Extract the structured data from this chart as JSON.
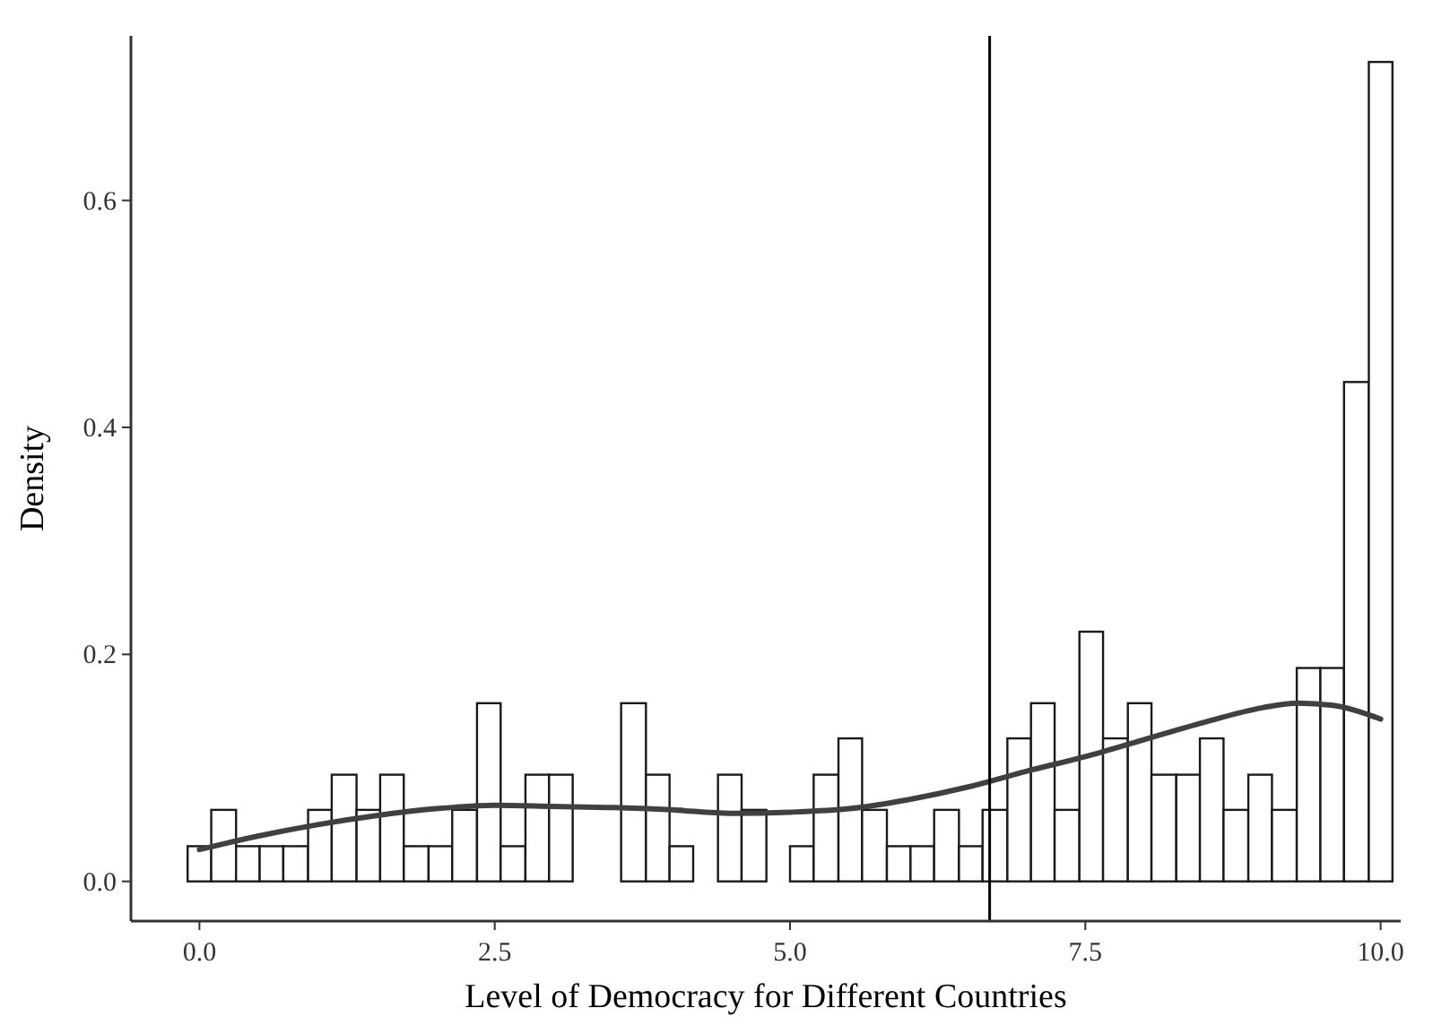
{
  "chart_data": {
    "type": "histogram",
    "xlabel": "Level of Democracy for Different Countries",
    "ylabel": "Density",
    "bins": [
      -0.1,
      0.1,
      0.31,
      0.51,
      0.71,
      0.92,
      1.12,
      1.33,
      1.53,
      1.73,
      1.94,
      2.14,
      2.35,
      2.55,
      2.76,
      2.96,
      3.16,
      3.57,
      3.78,
      3.98,
      4.18,
      4.39,
      4.59,
      4.8,
      5,
      5.2,
      5.41,
      5.61,
      5.82,
      6.02,
      6.22,
      6.43,
      6.63,
      6.84,
      7.04,
      7.24,
      7.45,
      7.65,
      7.86,
      8.06,
      8.27,
      8.47,
      8.67,
      8.88,
      9.08,
      9.29,
      9.49,
      9.69,
      9.9,
      10.1
    ],
    "values": [
      0.031,
      0.063,
      0.031,
      0.031,
      0.031,
      0.063,
      0.094,
      0.063,
      0.094,
      0.031,
      0.031,
      0.063,
      0.157,
      0.031,
      0.094,
      0.094,
      0,
      0.157,
      0.094,
      0.031,
      0,
      0.094,
      0.063,
      0,
      0.031,
      0.094,
      0.126,
      0.063,
      0.031,
      0.031,
      0.063,
      0.031,
      0.063,
      0.126,
      0.157,
      0.063,
      0.22,
      0.126,
      0.157,
      0.094,
      0.094,
      0.126,
      0.063,
      0.094,
      0.063,
      0.188,
      0.188,
      0.44,
      0.722
    ],
    "color": "#ffffff",
    "series": [
      {
        "type": "line",
        "color": "#404040",
        "x": [
          0,
          0.5,
          1,
          1.5,
          2,
          2.5,
          3,
          3.5,
          4,
          4.5,
          5,
          5.5,
          6,
          6.5,
          7,
          7.5,
          8,
          8.5,
          9,
          9.3,
          9.6,
          10
        ],
        "values": [
          0.028,
          0.04,
          0.05,
          0.058,
          0.064,
          0.067,
          0.066,
          0.065,
          0.063,
          0.06,
          0.061,
          0.064,
          0.072,
          0.083,
          0.097,
          0.11,
          0.125,
          0.14,
          0.153,
          0.157,
          0.155,
          0.143
        ]
      }
    ],
    "ref_lines": [
      {
        "axis": "x",
        "value": 6.69,
        "color": "#000000"
      }
    ],
    "xlim": [
      -0.58,
      10.17
    ],
    "ylim": [
      -0.035,
      0.745
    ],
    "xticks": [
      {
        "value": 0,
        "label": "0.0"
      },
      {
        "value": 2.5,
        "label": "2.5"
      },
      {
        "value": 5,
        "label": "5.0"
      },
      {
        "value": 7.5,
        "label": "7.5"
      },
      {
        "value": 10,
        "label": "10.0"
      }
    ],
    "yticks": [
      {
        "value": 0,
        "label": "0.0"
      },
      {
        "value": 0.2,
        "label": "0.2"
      },
      {
        "value": 0.4,
        "label": "0.4"
      },
      {
        "value": 0.6,
        "label": "0.6"
      }
    ],
    "grid": false
  }
}
